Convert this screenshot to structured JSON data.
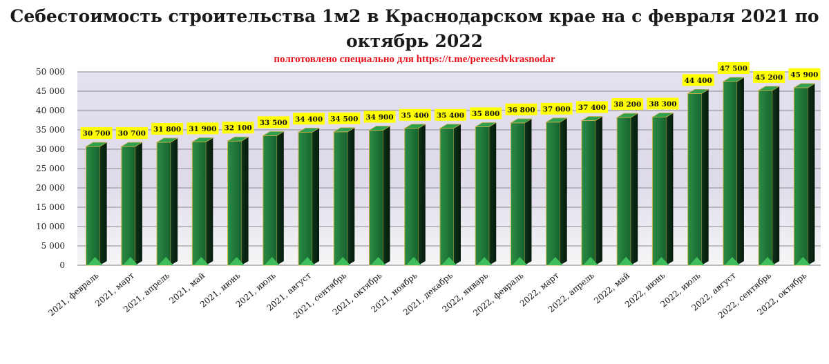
{
  "chart_data": {
    "type": "bar",
    "title": "Себестоимость строительства 1м2 в Краснодарском крае на с февраля 2021 по октябрь 2022",
    "subtitle": "полготовлено специально для https://t.me/pereesdvkrasnodar",
    "xlabel": "",
    "ylabel": "",
    "ylim": [
      0,
      50000
    ],
    "ytick_step": 5000,
    "grid": true,
    "legend": "none",
    "categories": [
      "2021, февраль",
      "2021, март",
      "2021, апрель",
      "2021, май",
      "2021, июнь",
      "2021, июль",
      "2021, август",
      "2021, сентябрь",
      "2021, октябрь",
      "2021, ноябрь",
      "2021, декабрь",
      "2022, январь",
      "2022, февраль",
      "2022, март",
      "2022, апрель",
      "2022, май",
      "2022, июнь",
      "2022, июль",
      "2022, август",
      "2022, сентябрь",
      "2022, октябрь"
    ],
    "values": [
      30700,
      30700,
      31800,
      31900,
      32100,
      33500,
      34400,
      34500,
      34900,
      35400,
      35400,
      35800,
      36800,
      37000,
      37400,
      38200,
      38300,
      44400,
      47500,
      45200,
      45900
    ],
    "colors": {
      "bar_front": "#1e7a3c",
      "bar_side": "#0b2a12",
      "bar_top": "#3fbf5c",
      "label_bg": "#ffff00",
      "plot_bg": "#e6e2f0",
      "grid": "#8a8a8a"
    }
  }
}
